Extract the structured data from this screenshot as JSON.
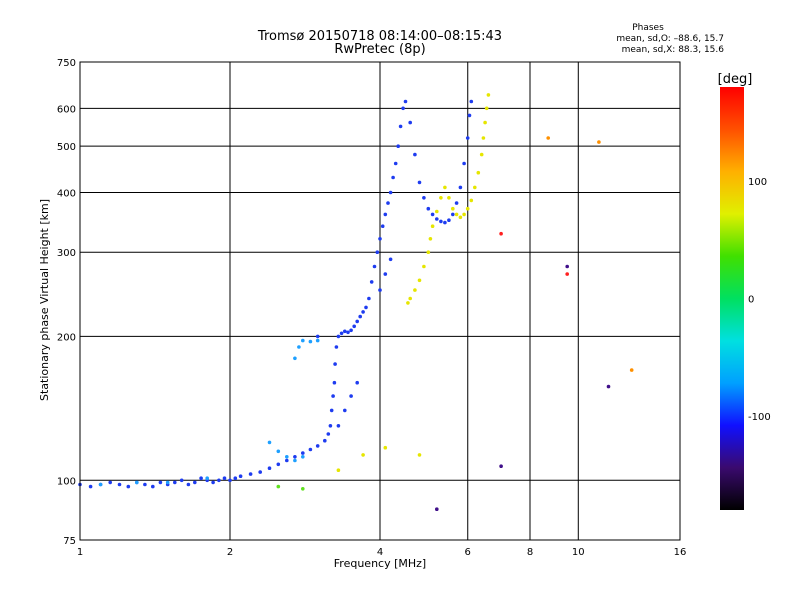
{
  "chart_data": {
    "type": "scatter",
    "title": "Tromsø 20150718 08:14:00–08:15:43",
    "subtitle": "RwPretec (8p)",
    "xlabel": "Frequency [MHz]",
    "ylabel": "Stationary phase Virtual Height [km]",
    "x_scale": "log",
    "y_scale": "log",
    "xlim": [
      1,
      16
    ],
    "ylim": [
      75,
      750
    ],
    "x_ticks": [
      1,
      2,
      4,
      6,
      8,
      10,
      16
    ],
    "y_ticks": [
      75,
      100,
      200,
      300,
      400,
      500,
      600,
      750
    ],
    "grid": true,
    "info": {
      "heading": "Phases",
      "line1": "mean, sd,O: –88.6, 15.7",
      "line2": "mean, sd,X:  88.3, 15.6"
    },
    "colorbar": {
      "label": "[deg]",
      "ticks": [
        100,
        0,
        -100
      ],
      "range": [
        -180,
        180
      ],
      "colors": [
        "#000000",
        "#3a0a6e",
        "#1010ff",
        "#00a0ff",
        "#00e0e0",
        "#00e060",
        "#40e000",
        "#e0f000",
        "#ffb000",
        "#ff5000",
        "#ff0000"
      ]
    },
    "series": [
      {
        "phase": -95,
        "color": "#1e3cf0",
        "points": [
          [
            1.0,
            98
          ],
          [
            1.05,
            97
          ],
          [
            1.1,
            98
          ],
          [
            1.15,
            99
          ],
          [
            1.2,
            98
          ],
          [
            1.25,
            97
          ],
          [
            1.3,
            99
          ],
          [
            1.35,
            98
          ],
          [
            1.4,
            97
          ],
          [
            1.45,
            99
          ],
          [
            1.5,
            98
          ],
          [
            1.55,
            99
          ],
          [
            1.6,
            100
          ],
          [
            1.65,
            98
          ],
          [
            1.7,
            99
          ],
          [
            1.75,
            101
          ],
          [
            1.8,
            100
          ],
          [
            1.85,
            99
          ],
          [
            1.9,
            100
          ],
          [
            1.95,
            101
          ],
          [
            2.0,
            100
          ],
          [
            2.05,
            101
          ],
          [
            2.1,
            102
          ],
          [
            2.2,
            103
          ],
          [
            2.3,
            104
          ],
          [
            2.4,
            106
          ],
          [
            2.5,
            108
          ],
          [
            2.6,
            110
          ],
          [
            2.7,
            112
          ],
          [
            2.8,
            114
          ],
          [
            2.9,
            116
          ],
          [
            3.0,
            118
          ],
          [
            3.1,
            121
          ],
          [
            3.15,
            125
          ],
          [
            3.18,
            130
          ],
          [
            3.2,
            140
          ],
          [
            3.22,
            150
          ],
          [
            3.24,
            160
          ],
          [
            3.25,
            175
          ],
          [
            3.27,
            190
          ],
          [
            3.3,
            200
          ],
          [
            3.35,
            203
          ],
          [
            3.4,
            205
          ],
          [
            3.45,
            204
          ],
          [
            3.5,
            206
          ],
          [
            3.55,
            210
          ],
          [
            3.6,
            215
          ],
          [
            3.65,
            220
          ],
          [
            3.7,
            225
          ],
          [
            3.75,
            230
          ],
          [
            3.8,
            240
          ],
          [
            3.85,
            260
          ],
          [
            3.9,
            280
          ],
          [
            3.95,
            300
          ],
          [
            4.0,
            320
          ],
          [
            4.05,
            340
          ],
          [
            4.1,
            360
          ],
          [
            4.15,
            380
          ],
          [
            4.2,
            400
          ],
          [
            4.25,
            430
          ],
          [
            4.3,
            460
          ],
          [
            4.35,
            500
          ],
          [
            4.4,
            550
          ],
          [
            4.45,
            600
          ],
          [
            4.5,
            620
          ],
          [
            4.6,
            560
          ],
          [
            4.7,
            480
          ],
          [
            4.8,
            420
          ],
          [
            4.9,
            390
          ],
          [
            5.0,
            370
          ],
          [
            5.1,
            360
          ],
          [
            5.2,
            352
          ],
          [
            5.3,
            348
          ],
          [
            5.4,
            346
          ],
          [
            5.5,
            350
          ],
          [
            5.6,
            360
          ],
          [
            5.7,
            380
          ],
          [
            5.8,
            410
          ],
          [
            5.9,
            460
          ],
          [
            6.0,
            520
          ],
          [
            6.05,
            580
          ],
          [
            6.1,
            620
          ],
          [
            4.0,
            250
          ],
          [
            4.1,
            270
          ],
          [
            4.2,
            290
          ],
          [
            3.6,
            160
          ],
          [
            3.5,
            150
          ],
          [
            3.4,
            140
          ],
          [
            3.3,
            130
          ],
          [
            3.0,
            200
          ]
        ]
      },
      {
        "phase": 100,
        "color": "#e6e600",
        "points": [
          [
            4.55,
            235
          ],
          [
            4.6,
            240
          ],
          [
            4.7,
            250
          ],
          [
            4.8,
            262
          ],
          [
            4.9,
            280
          ],
          [
            5.0,
            300
          ],
          [
            5.05,
            320
          ],
          [
            5.1,
            340
          ],
          [
            5.2,
            365
          ],
          [
            5.3,
            390
          ],
          [
            5.4,
            410
          ],
          [
            5.5,
            390
          ],
          [
            5.6,
            370
          ],
          [
            5.7,
            360
          ],
          [
            5.8,
            355
          ],
          [
            5.9,
            360
          ],
          [
            6.0,
            370
          ],
          [
            6.1,
            385
          ],
          [
            6.2,
            410
          ],
          [
            6.3,
            440
          ],
          [
            6.4,
            480
          ],
          [
            6.45,
            520
          ],
          [
            6.5,
            560
          ],
          [
            6.55,
            600
          ],
          [
            6.6,
            640
          ],
          [
            3.3,
            105
          ],
          [
            3.7,
            113
          ],
          [
            4.1,
            117
          ],
          [
            4.8,
            113
          ]
        ]
      },
      {
        "phase": -55,
        "color": "#1ea0ff",
        "points": [
          [
            2.7,
            180
          ],
          [
            2.75,
            190
          ],
          [
            2.8,
            196
          ],
          [
            2.9,
            195
          ],
          [
            3.0,
            196
          ],
          [
            2.4,
            120
          ],
          [
            2.5,
            115
          ],
          [
            2.6,
            112
          ],
          [
            2.7,
            110
          ],
          [
            2.8,
            112
          ],
          [
            1.1,
            98
          ],
          [
            1.3,
            99
          ],
          [
            1.5,
            99
          ],
          [
            1.8,
            101
          ]
        ]
      },
      {
        "phase": 60,
        "color": "#60e020",
        "points": [
          [
            2.5,
            97
          ],
          [
            2.8,
            96
          ]
        ]
      },
      {
        "phase": 150,
        "color": "#ff2020",
        "points": [
          [
            7.0,
            328
          ],
          [
            9.5,
            270
          ]
        ]
      },
      {
        "phase": 130,
        "color": "#ff9000",
        "points": [
          [
            8.7,
            520
          ],
          [
            11.0,
            510
          ],
          [
            12.8,
            170
          ]
        ]
      },
      {
        "phase": -150,
        "color": "#40108a",
        "points": [
          [
            9.5,
            280
          ],
          [
            5.2,
            87
          ],
          [
            7.0,
            107
          ],
          [
            11.5,
            157
          ]
        ]
      }
    ]
  }
}
